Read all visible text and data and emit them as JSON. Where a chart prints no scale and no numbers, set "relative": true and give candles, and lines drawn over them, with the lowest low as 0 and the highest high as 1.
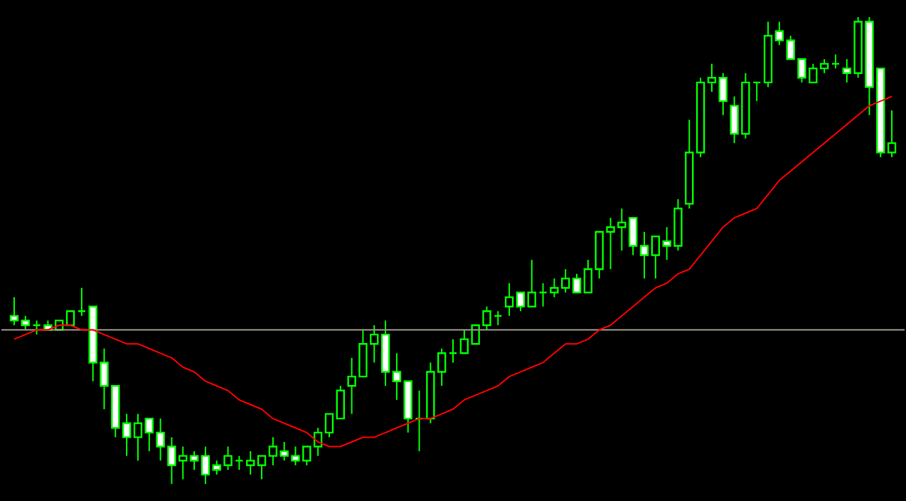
{
  "chart_data": {
    "type": "candlestick",
    "relative": true,
    "color": "#00ff00",
    "categories": [
      null,
      null,
      null,
      null,
      null,
      null,
      null,
      null,
      null,
      null,
      null,
      null,
      null,
      null,
      null,
      null,
      null,
      null,
      null,
      null,
      null,
      null,
      null,
      null,
      null,
      null,
      null,
      null,
      null,
      null,
      null,
      null,
      null,
      null,
      null,
      null,
      null,
      null,
      null,
      null,
      null,
      null,
      null,
      null,
      null,
      null,
      null,
      null,
      null,
      null,
      null,
      null,
      null,
      null,
      null,
      null,
      null,
      null,
      null,
      null,
      null,
      null,
      null,
      null,
      null,
      null,
      null,
      null,
      null,
      null,
      null,
      null,
      null,
      null,
      null,
      null,
      null,
      null,
      null
    ],
    "ohlc": [
      [
        0.36,
        0.4,
        0.34,
        0.35
      ],
      [
        0.35,
        0.36,
        0.33,
        0.34
      ],
      [
        0.34,
        0.35,
        0.32,
        0.34
      ],
      [
        0.34,
        0.35,
        0.33,
        0.33
      ],
      [
        0.33,
        0.35,
        0.33,
        0.35
      ],
      [
        0.34,
        0.37,
        0.34,
        0.37
      ],
      [
        0.37,
        0.42,
        0.36,
        0.37
      ],
      [
        0.38,
        0.38,
        0.22,
        0.26
      ],
      [
        0.26,
        0.29,
        0.16,
        0.21
      ],
      [
        0.21,
        0.21,
        0.1,
        0.12
      ],
      [
        0.13,
        0.15,
        0.06,
        0.1
      ],
      [
        0.1,
        0.15,
        0.05,
        0.13
      ],
      [
        0.14,
        0.14,
        0.07,
        0.11
      ],
      [
        0.11,
        0.14,
        0.05,
        0.08
      ],
      [
        0.08,
        0.1,
        0.0,
        0.04
      ],
      [
        0.05,
        0.08,
        0.01,
        0.06
      ],
      [
        0.06,
        0.07,
        0.03,
        0.05
      ],
      [
        0.06,
        0.08,
        0.0,
        0.02
      ],
      [
        0.04,
        0.05,
        0.02,
        0.03
      ],
      [
        0.04,
        0.08,
        0.03,
        0.06
      ],
      [
        0.05,
        0.06,
        0.03,
        0.05
      ],
      [
        0.04,
        0.07,
        0.02,
        0.05
      ],
      [
        0.04,
        0.06,
        0.01,
        0.06
      ],
      [
        0.06,
        0.1,
        0.04,
        0.08
      ],
      [
        0.07,
        0.09,
        0.05,
        0.06
      ],
      [
        0.06,
        0.08,
        0.04,
        0.05
      ],
      [
        0.05,
        0.08,
        0.04,
        0.08
      ],
      [
        0.08,
        0.12,
        0.06,
        0.11
      ],
      [
        0.11,
        0.15,
        0.1,
        0.15
      ],
      [
        0.14,
        0.21,
        0.14,
        0.2
      ],
      [
        0.21,
        0.27,
        0.15,
        0.23
      ],
      [
        0.23,
        0.33,
        0.23,
        0.3
      ],
      [
        0.3,
        0.34,
        0.26,
        0.32
      ],
      [
        0.32,
        0.35,
        0.21,
        0.24
      ],
      [
        0.24,
        0.28,
        0.18,
        0.22
      ],
      [
        0.22,
        0.22,
        0.11,
        0.14
      ],
      [
        0.14,
        0.2,
        0.07,
        0.14
      ],
      [
        0.14,
        0.26,
        0.13,
        0.24
      ],
      [
        0.24,
        0.29,
        0.21,
        0.28
      ],
      [
        0.28,
        0.31,
        0.26,
        0.28
      ],
      [
        0.28,
        0.33,
        0.28,
        0.31
      ],
      [
        0.3,
        0.34,
        0.3,
        0.34
      ],
      [
        0.34,
        0.38,
        0.33,
        0.37
      ],
      [
        0.36,
        0.37,
        0.34,
        0.36
      ],
      [
        0.38,
        0.43,
        0.36,
        0.4
      ],
      [
        0.41,
        0.41,
        0.37,
        0.38
      ],
      [
        0.38,
        0.48,
        0.38,
        0.41
      ],
      [
        0.41,
        0.43,
        0.38,
        0.41
      ],
      [
        0.41,
        0.44,
        0.4,
        0.42
      ],
      [
        0.42,
        0.46,
        0.41,
        0.44
      ],
      [
        0.44,
        0.45,
        0.41,
        0.41
      ],
      [
        0.41,
        0.48,
        0.41,
        0.46
      ],
      [
        0.46,
        0.54,
        0.44,
        0.54
      ],
      [
        0.54,
        0.57,
        0.46,
        0.55
      ],
      [
        0.55,
        0.59,
        0.5,
        0.56
      ],
      [
        0.57,
        0.57,
        0.49,
        0.51
      ],
      [
        0.51,
        0.54,
        0.44,
        0.49
      ],
      [
        0.49,
        0.53,
        0.44,
        0.53
      ],
      [
        0.52,
        0.55,
        0.48,
        0.51
      ],
      [
        0.51,
        0.61,
        0.5,
        0.59
      ],
      [
        0.6,
        0.78,
        0.59,
        0.71
      ],
      [
        0.71,
        0.87,
        0.7,
        0.86
      ],
      [
        0.86,
        0.9,
        0.84,
        0.87
      ],
      [
        0.87,
        0.88,
        0.79,
        0.82
      ],
      [
        0.81,
        0.83,
        0.73,
        0.75
      ],
      [
        0.75,
        0.88,
        0.74,
        0.86
      ],
      [
        0.86,
        0.86,
        0.82,
        0.86
      ],
      [
        0.86,
        0.99,
        0.85,
        0.96
      ],
      [
        0.97,
        0.99,
        0.94,
        0.95
      ],
      [
        0.95,
        0.96,
        0.91,
        0.91
      ],
      [
        0.91,
        0.91,
        0.86,
        0.87
      ],
      [
        0.86,
        0.9,
        0.86,
        0.89
      ],
      [
        0.89,
        0.91,
        0.88,
        0.9
      ],
      [
        0.9,
        0.92,
        0.89,
        0.9
      ],
      [
        0.89,
        0.91,
        0.86,
        0.88
      ],
      [
        0.88,
        1.0,
        0.87,
        0.99
      ],
      [
        0.99,
        1.0,
        0.79,
        0.85
      ],
      [
        0.89,
        0.89,
        0.7,
        0.71
      ],
      [
        0.71,
        0.8,
        0.7,
        0.73
      ]
    ],
    "series": [
      {
        "type": "line",
        "color": "#ff0000",
        "values": [
          0.31,
          0.32,
          0.33,
          0.33,
          0.34,
          0.34,
          0.33,
          0.33,
          0.32,
          0.31,
          0.3,
          0.3,
          0.29,
          0.28,
          0.27,
          0.25,
          0.24,
          0.22,
          0.21,
          0.2,
          0.18,
          0.17,
          0.16,
          0.14,
          0.13,
          0.12,
          0.11,
          0.09,
          0.08,
          0.08,
          0.09,
          0.1,
          0.1,
          0.11,
          0.12,
          0.13,
          0.14,
          0.14,
          0.15,
          0.16,
          0.18,
          0.19,
          0.2,
          0.21,
          0.23,
          0.24,
          0.25,
          0.26,
          0.28,
          0.3,
          0.3,
          0.31,
          0.33,
          0.34,
          0.36,
          0.38,
          0.4,
          0.42,
          0.43,
          0.45,
          0.46,
          0.49,
          0.52,
          0.55,
          0.57,
          0.58,
          0.59,
          0.62,
          0.65,
          0.67,
          0.69,
          0.71,
          0.73,
          0.75,
          0.77,
          0.79,
          0.81,
          0.82,
          0.83
        ]
      }
    ],
    "ref_lines": [
      {
        "axis": "y",
        "value": 0.33,
        "color": "#a09a8c"
      }
    ]
  }
}
